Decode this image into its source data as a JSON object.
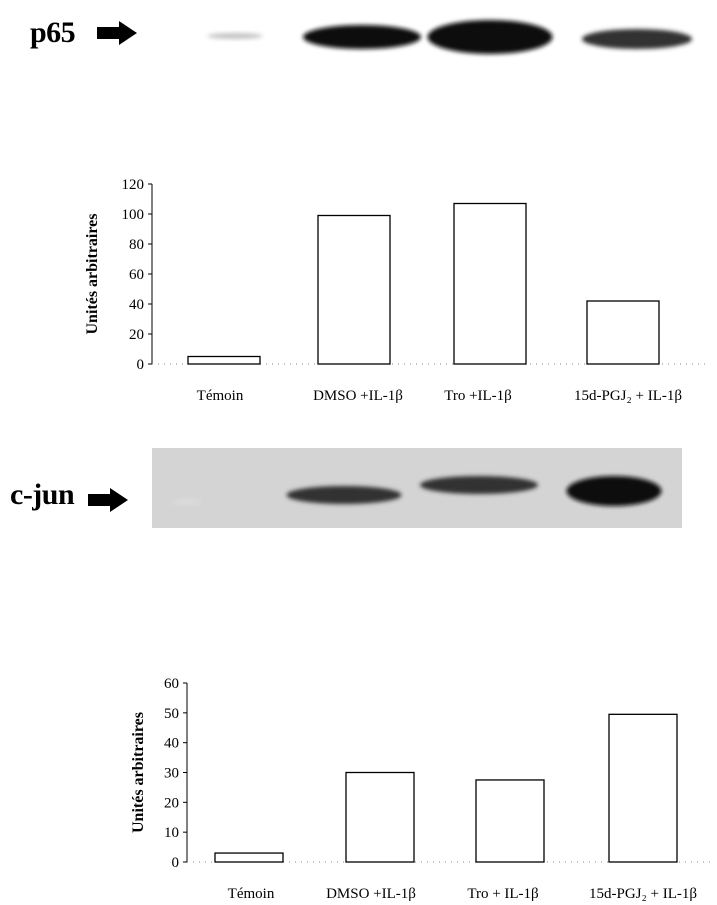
{
  "panels": [
    {
      "blot_label": "p65",
      "band_intensities": [
        0.25,
        1.0,
        1.0,
        0.85
      ]
    },
    {
      "blot_label": "c-jun",
      "band_intensities": [
        0.15,
        0.85,
        0.85,
        1.0
      ]
    }
  ],
  "chart_data": [
    {
      "type": "bar",
      "ylabel": "Unités arbitraires",
      "ylim": [
        0,
        120
      ],
      "yticks": [
        "0",
        "20",
        "40",
        "60",
        "80",
        "100",
        "120"
      ],
      "categories": [
        "Témoin",
        "DMSO +IL-1β",
        "Tro +IL-1β",
        "15d-PGJ₂ + IL-1β"
      ],
      "values": [
        5,
        99,
        107,
        42
      ],
      "grid": false
    },
    {
      "type": "bar",
      "ylabel": "Unités arbitraires",
      "ylim": [
        0,
        60
      ],
      "yticks": [
        "0",
        "10",
        "20",
        "30",
        "40",
        "50",
        "60"
      ],
      "categories": [
        "Témoin",
        "DMSO +IL-1β",
        "Tro + IL-1β",
        "15d-PGJ₂ + IL-1β"
      ],
      "values": [
        3,
        30,
        27.5,
        49.5
      ],
      "grid": false
    }
  ]
}
